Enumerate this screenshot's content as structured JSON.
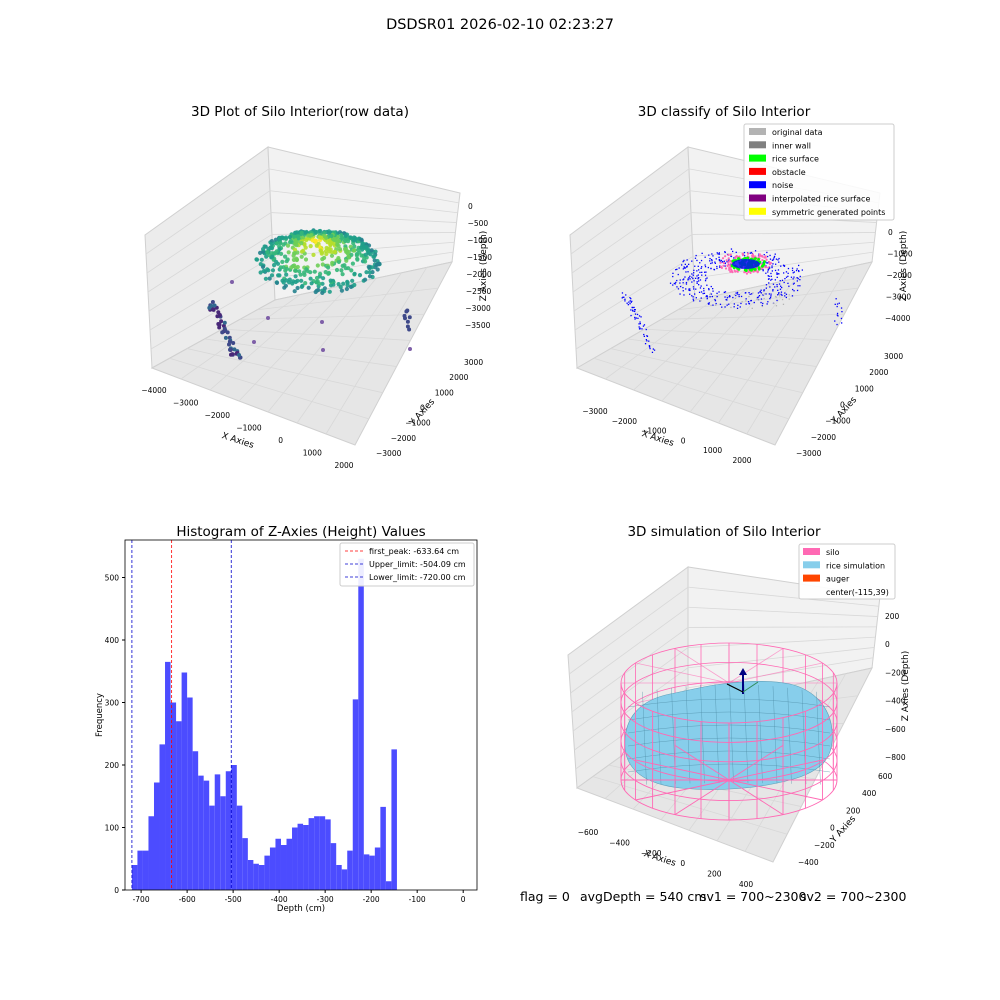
{
  "suptitle": "DSDSR01 2026-02-10 02:23:27",
  "footer": {
    "flag": "flag = 0",
    "avg": "avgDepth = 540 cm",
    "sv1": "sv1 = 700~2300",
    "sv2": "sv2 = 700~2300"
  },
  "colors": {
    "histogram_bar": "#4c4cff",
    "first_peak_line": "#ff0000",
    "limit_line": "#0000cc",
    "silo_wire": "#ff69b4",
    "rice_surface": "#87ceeb",
    "pane": "#f2f2f2"
  },
  "chart_data": [
    {
      "type": "scatter",
      "title": "3D Plot of Silo Interior(row data)",
      "xlabel": "X Axies",
      "ylabel": "Y Axies",
      "zlabel": "Z Axies (Depth)",
      "x_ticks": [
        "−4000",
        "−3000",
        "−2000",
        "−1000",
        "0",
        "1000",
        "2000"
      ],
      "y_ticks": [
        "−3000",
        "−2000",
        "−1000",
        "0",
        "1000",
        "2000",
        "3000"
      ],
      "z_ticks": [
        "0",
        "−500",
        "−1000",
        "−1500",
        "−2000",
        "−2500",
        "−3000",
        "−3500"
      ],
      "xlim": [
        -4300,
        2600
      ],
      "ylim": [
        -3200,
        3300
      ],
      "zlim": [
        -3800,
        200
      ],
      "colormap": "viridis (by depth)"
    },
    {
      "type": "scatter",
      "title": "3D classify of Silo Interior",
      "xlabel": "X Axies",
      "ylabel": "Y Axies",
      "zlabel": "Z Axies (Depth)",
      "x_ticks": [
        "−3000",
        "−2000",
        "−1000",
        "0",
        "1000",
        "2000"
      ],
      "y_ticks": [
        "−3000",
        "−2000",
        "−1000",
        "0",
        "1000",
        "2000",
        "3000"
      ],
      "z_ticks": [
        "0",
        "−1000",
        "−2000",
        "−3000",
        "−4000"
      ],
      "xlim": [
        -3500,
        2600
      ],
      "ylim": [
        -3200,
        3300
      ],
      "zlim": [
        -4600,
        400
      ],
      "legend_position": "upper right",
      "legend": [
        {
          "label": "original data",
          "color": "#b3b3b3"
        },
        {
          "label": "inner wall",
          "color": "#808080"
        },
        {
          "label": "rice surface",
          "color": "#00ff00"
        },
        {
          "label": "obstacle",
          "color": "#ff0000"
        },
        {
          "label": "noise",
          "color": "#0000ff"
        },
        {
          "label": "interpolated rice surface",
          "color": "#800080"
        },
        {
          "label": "symmetric generated points",
          "color": "#ffff00"
        }
      ]
    },
    {
      "type": "bar",
      "title": "Histogram of Z-Axies (Height) Values",
      "xlabel": "Depth (cm)",
      "ylabel": "Frequency",
      "xlim": [
        -735,
        30
      ],
      "ylim": [
        0,
        560
      ],
      "x_ticks": [
        -700,
        -600,
        -500,
        -400,
        -300,
        -200,
        -100,
        0
      ],
      "y_ticks": [
        0,
        100,
        200,
        300,
        400,
        500
      ],
      "bin_start": -720,
      "bin_width": 12,
      "values": [
        40,
        63,
        63,
        118,
        172,
        233,
        365,
        300,
        270,
        348,
        308,
        222,
        183,
        175,
        135,
        185,
        150,
        190,
        200,
        135,
        83,
        48,
        42,
        40,
        55,
        68,
        82,
        72,
        82,
        100,
        106,
        104,
        115,
        118,
        118,
        113,
        75,
        40,
        33,
        63,
        305,
        530,
        57,
        55,
        68,
        133,
        14,
        225
      ],
      "legend_position": "upper right",
      "reference_lines": [
        {
          "label": "first_peak: -633.64 cm",
          "x": -633.64,
          "color": "#ff0000"
        },
        {
          "label": "Upper_limit: -504.09 cm",
          "x": -504.09,
          "color": "#0000cc"
        },
        {
          "label": "Lower_limit: -720.00 cm",
          "x": -720.0,
          "color": "#0000cc"
        }
      ]
    },
    {
      "type": "surface",
      "title": "3D simulation of Silo Interior",
      "xlabel": "X Axies",
      "ylabel": "Y Axies",
      "zlabel": "Z Axies (Depth)",
      "x_ticks": [
        "−600",
        "−400",
        "−200",
        "0",
        "200",
        "400"
      ],
      "y_ticks": [
        "−400",
        "−200",
        "0",
        "200",
        "400",
        "600"
      ],
      "z_ticks": [
        "200",
        "0",
        "−200",
        "−400",
        "−600",
        "−800"
      ],
      "xlim": [
        -700,
        450
      ],
      "ylim": [
        -500,
        650
      ],
      "zlim": [
        -880,
        300
      ],
      "legend_position": "upper right",
      "legend": [
        {
          "label": "silo",
          "color": "#ff69b4"
        },
        {
          "label": "rice simulation",
          "color": "#87ceeb"
        },
        {
          "label": "auger",
          "color": "#ff4500"
        },
        {
          "label": "center(-115,39)",
          "color": ""
        }
      ]
    }
  ]
}
